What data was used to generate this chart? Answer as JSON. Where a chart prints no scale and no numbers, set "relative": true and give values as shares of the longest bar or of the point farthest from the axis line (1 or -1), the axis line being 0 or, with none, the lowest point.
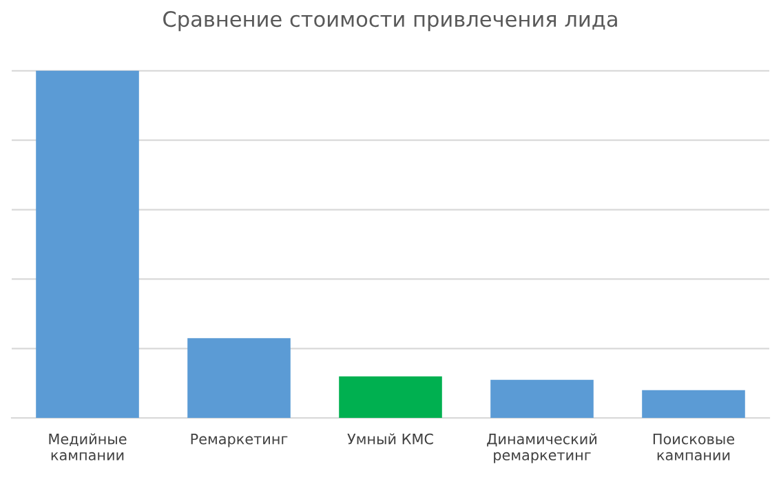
{
  "chart_data": {
    "type": "bar",
    "title": "Сравнение стоимости привлечения лида",
    "categories": [
      "Медийные\nкампании",
      "Ремаркетинг",
      "Умный КМС",
      "Динамический\nремаркетинг",
      "Поисковые\nкампании"
    ],
    "values": [
      1,
      0.23,
      0.12,
      0.11,
      0.08
    ],
    "colors": [
      "#5b9bd5",
      "#5b9bd5",
      "#00b050",
      "#5b9bd5",
      "#5b9bd5"
    ],
    "relative": true,
    "grid": "y"
  }
}
